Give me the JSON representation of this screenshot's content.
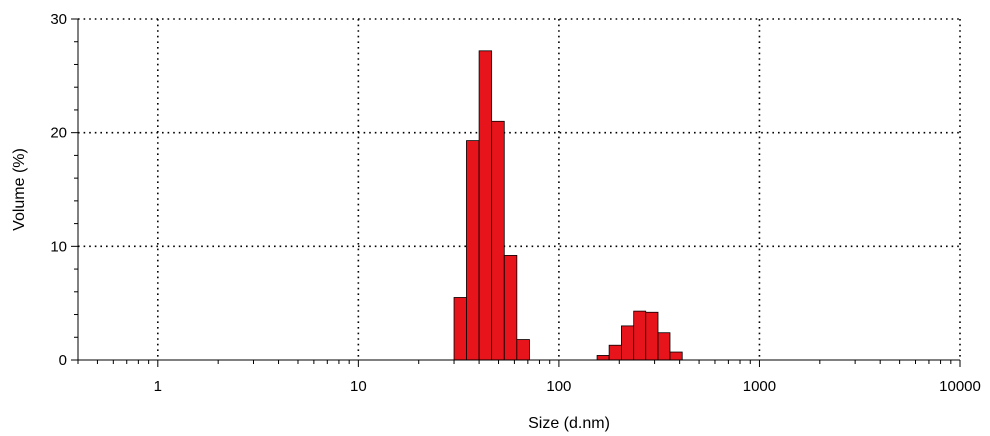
{
  "chart_data": {
    "type": "bar",
    "title": "",
    "xlabel": "Size (d.nm)",
    "ylabel": "Volume (%)",
    "x_scale": "log",
    "xlim": [
      0.4,
      10000
    ],
    "ylim": [
      0,
      30
    ],
    "grid": true,
    "x_ticks": [
      {
        "value": 1,
        "label": "1"
      },
      {
        "value": 10,
        "label": "10"
      },
      {
        "value": 100,
        "label": "100"
      },
      {
        "value": 1000,
        "label": "1000"
      },
      {
        "value": 10000,
        "label": "10000"
      }
    ],
    "y_ticks": [
      {
        "value": 0,
        "label": "0"
      },
      {
        "value": 10,
        "label": "10"
      },
      {
        "value": 20,
        "label": "20"
      },
      {
        "value": 30,
        "label": "30"
      }
    ],
    "bar_color": "#e8141c",
    "bins": [
      {
        "x0": 30.0,
        "x1": 34.6,
        "value": 5.5
      },
      {
        "x0": 34.6,
        "x1": 40.0,
        "value": 19.3
      },
      {
        "x0": 40.0,
        "x1": 46.2,
        "value": 27.2
      },
      {
        "x0": 46.2,
        "x1": 53.4,
        "value": 21.0
      },
      {
        "x0": 53.4,
        "x1": 61.7,
        "value": 9.2
      },
      {
        "x0": 61.7,
        "x1": 71.3,
        "value": 1.8
      },
      {
        "x0": 155.0,
        "x1": 178.0,
        "value": 0.4
      },
      {
        "x0": 178.0,
        "x1": 205.0,
        "value": 1.3
      },
      {
        "x0": 205.0,
        "x1": 236.0,
        "value": 3.0
      },
      {
        "x0": 236.0,
        "x1": 271.0,
        "value": 4.3
      },
      {
        "x0": 271.0,
        "x1": 312.0,
        "value": 4.2
      },
      {
        "x0": 312.0,
        "x1": 358.0,
        "value": 2.4
      },
      {
        "x0": 358.0,
        "x1": 412.0,
        "value": 0.7
      }
    ]
  }
}
